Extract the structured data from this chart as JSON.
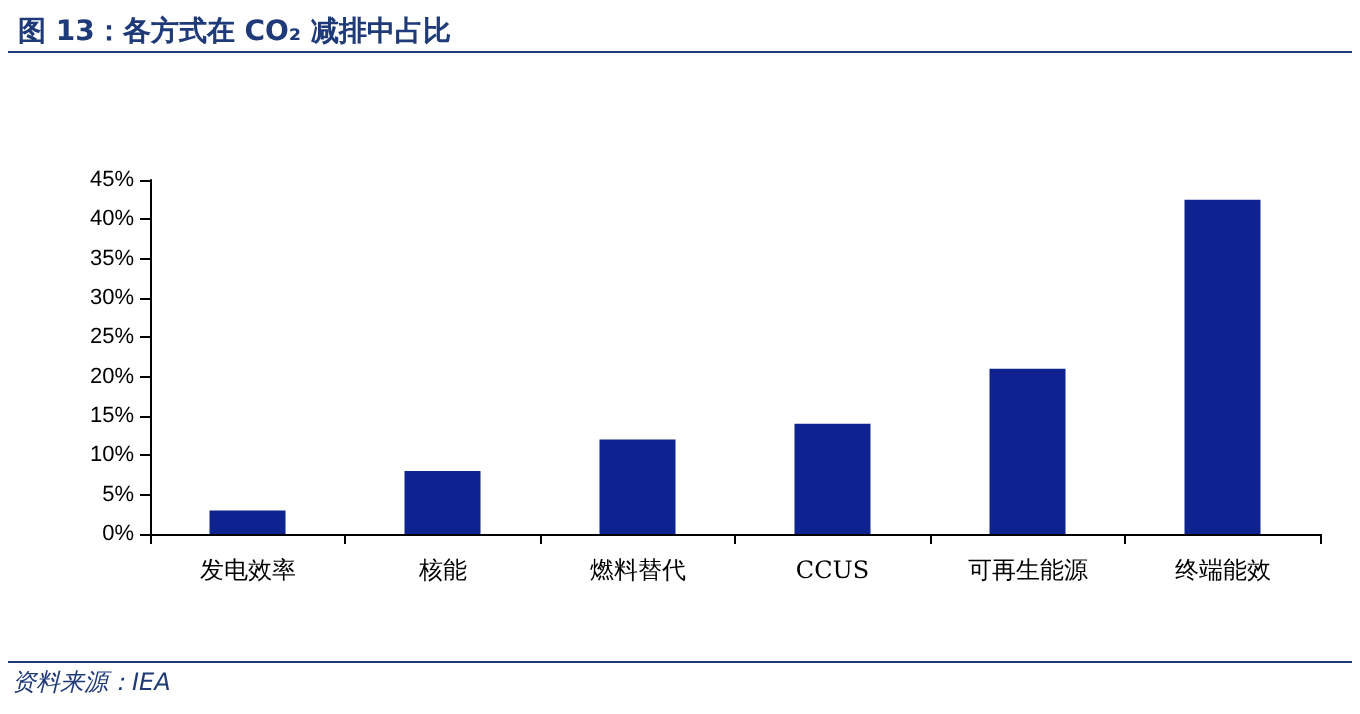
{
  "chart_data": {
    "type": "bar",
    "title": "图 13：各方式在 CO₂ 减排中占比",
    "categories": [
      "发电效率",
      "核能",
      "燃料替代",
      "CCUS",
      "可再生能源",
      "终端能效"
    ],
    "values": [
      3,
      8,
      12,
      14,
      21,
      42.5
    ],
    "color": "#0f2390",
    "ylim": [
      0,
      45
    ],
    "yticks": [
      {
        "value": 0,
        "label": "0%"
      },
      {
        "value": 5,
        "label": "5%"
      },
      {
        "value": 10,
        "label": "10%"
      },
      {
        "value": 15,
        "label": "15%"
      },
      {
        "value": 20,
        "label": "20%"
      },
      {
        "value": 25,
        "label": "25%"
      },
      {
        "value": 30,
        "label": "30%"
      },
      {
        "value": 35,
        "label": "35%"
      },
      {
        "value": 40,
        "label": "40%"
      },
      {
        "value": 45,
        "label": "45%"
      }
    ],
    "grid": false,
    "annotations": [
      "资料来源：IEA"
    ]
  }
}
